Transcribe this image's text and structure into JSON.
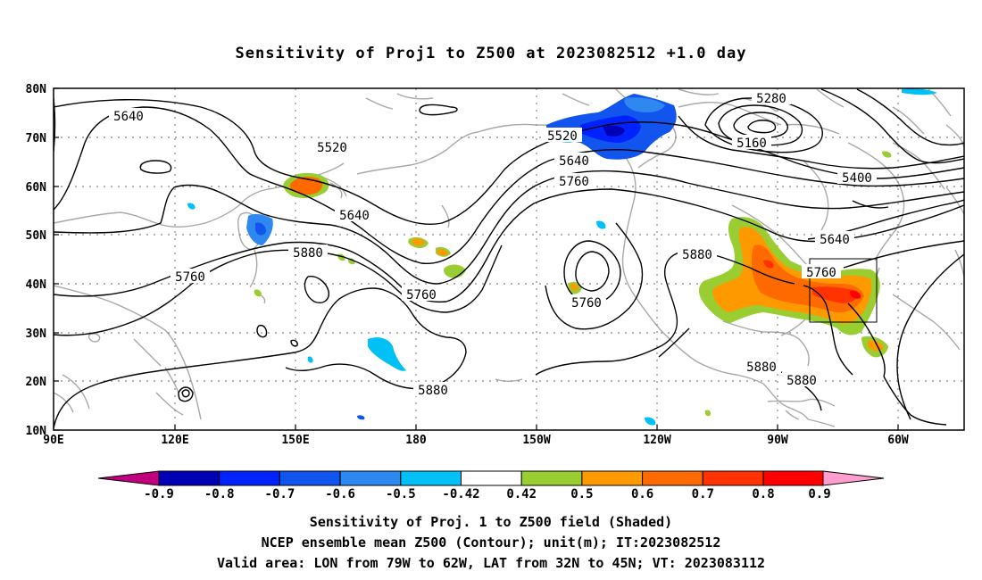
{
  "title": "Sensitivity of Proj1 to Z500 at 2023082512 +1.0 day",
  "map": {
    "lon_labels": [
      "90E",
      "120E",
      "150E",
      "180",
      "150W",
      "120W",
      "90W",
      "60W"
    ],
    "lat_labels": [
      "80N",
      "70N",
      "60N",
      "50N",
      "40N",
      "30N",
      "20N",
      "10N"
    ],
    "contour_labels": [
      "5280",
      "5160",
      "5400",
      "5520",
      "5520",
      "5640",
      "5640",
      "5640",
      "5640",
      "5760",
      "5760",
      "5760",
      "5760",
      "5760",
      "5880",
      "5880",
      "5880",
      "5880",
      "5880"
    ],
    "valid_area": {
      "lon_from": "79W",
      "lon_to": "62W",
      "lat_from": "32N",
      "lat_to": "45N"
    }
  },
  "colorbar": {
    "labels": [
      "-0.9",
      "-0.8",
      "-0.7",
      "-0.6",
      "-0.5",
      "-0.42",
      "0.42",
      "0.5",
      "0.6",
      "0.7",
      "0.8",
      "0.9"
    ],
    "colors": [
      "#c0007f",
      "#0000b4",
      "#0022ff",
      "#1155ee",
      "#2f88f0",
      "#00c0f5",
      "#ffffff",
      "#9acd32",
      "#ff9900",
      "#ff6a00",
      "#ff3300",
      "#ff0000",
      "#ff9ecf"
    ]
  },
  "caption": {
    "line1": "Sensitivity of Proj. 1 to Z500 field (Shaded)",
    "line2": "NCEP ensemble mean Z500 (Contour); unit(m); IT:2023082512",
    "line3": "Valid area: LON from 79W to 62W, LAT from 32N to 45N; VT: 2023083112"
  }
}
